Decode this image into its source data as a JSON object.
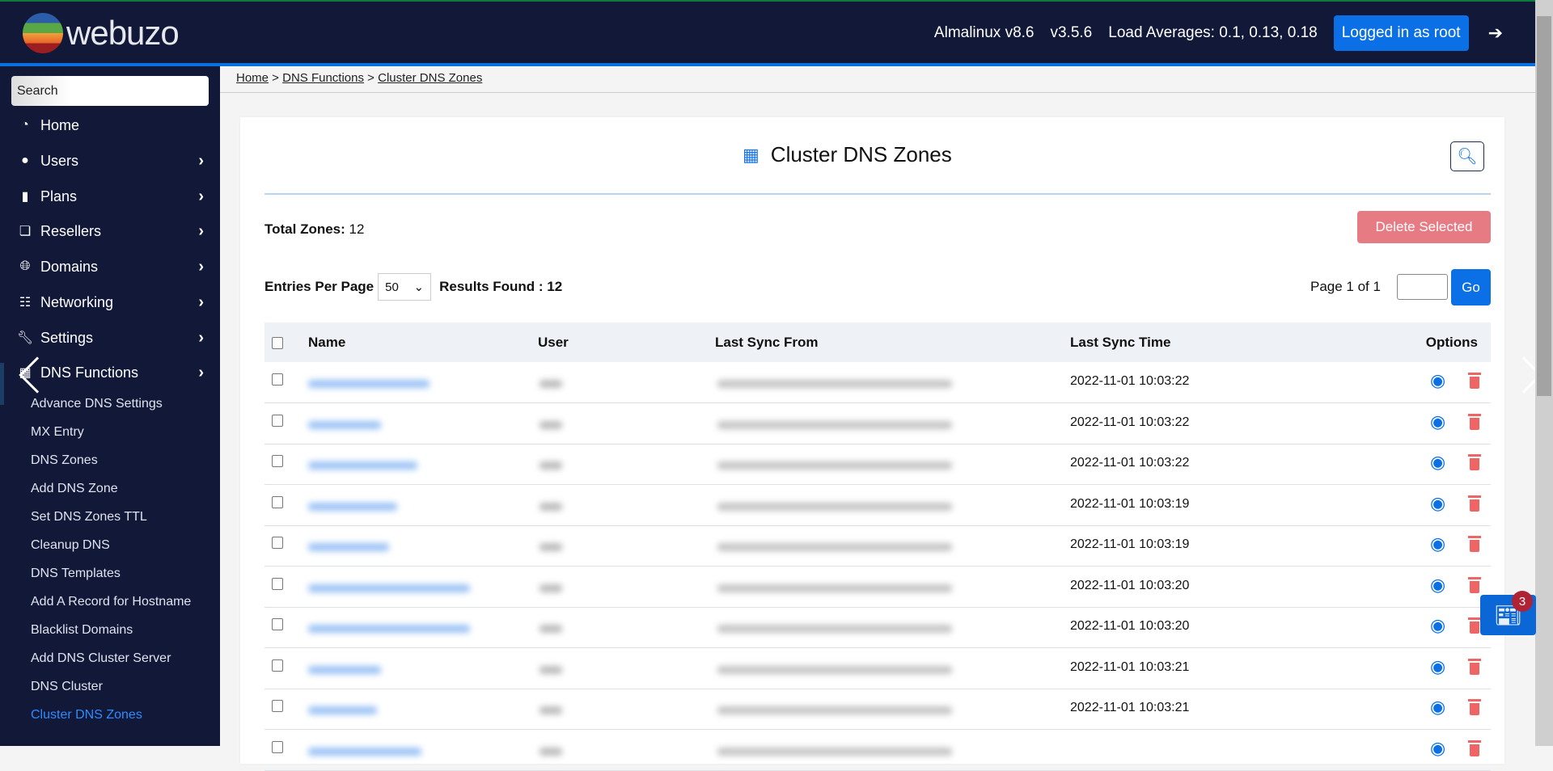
{
  "header": {
    "brand": "webuzo",
    "os": "Almalinux v8.6",
    "version": "v3.5.6",
    "load": "Load Averages: 0.1, 0.13, 0.18",
    "login": "Logged in as root",
    "logout_icon": "sign-out-icon"
  },
  "sidebar": {
    "search_placeholder": "Search",
    "items": [
      {
        "label": "Home",
        "icon": "dashboard-icon",
        "chev": false
      },
      {
        "label": "Users",
        "icon": "user-icon",
        "chev": true
      },
      {
        "label": "Plans",
        "icon": "book-icon",
        "chev": true
      },
      {
        "label": "Resellers",
        "icon": "clone-icon",
        "chev": true
      },
      {
        "label": "Domains",
        "icon": "globe-icon",
        "chev": true
      },
      {
        "label": "Networking",
        "icon": "network-icon",
        "chev": true
      },
      {
        "label": "Settings",
        "icon": "wrench-icon",
        "chev": true
      },
      {
        "label": "DNS Functions",
        "icon": "sitemap-icon",
        "chev": true
      }
    ],
    "subitems": [
      "Advance DNS Settings",
      "MX Entry",
      "DNS Zones",
      "Add DNS Zone",
      "Set DNS Zones TTL",
      "Cleanup DNS",
      "DNS Templates",
      "Add A Record for Hostname",
      "Blacklist Domains",
      "Add DNS Cluster Server",
      "DNS Cluster",
      "Cluster DNS Zones"
    ],
    "active": "Cluster DNS Zones"
  },
  "breadcrumb": [
    "Home",
    "DNS Functions",
    "Cluster DNS Zones"
  ],
  "page": {
    "title": "Cluster DNS Zones",
    "total_label": "Total Zones:",
    "total": "12",
    "delete_selected": "Delete Selected",
    "entries_label": "Entries Per Page",
    "entries_value": "50",
    "results": "Results Found : 12",
    "page_info": "Page 1 of 1",
    "go": "Go"
  },
  "table": {
    "columns": [
      "Name",
      "User",
      "Last Sync From",
      "Last Sync Time",
      "Options"
    ],
    "rows": [
      {
        "time": "2022-11-01 10:03:22"
      },
      {
        "time": "2022-11-01 10:03:22"
      },
      {
        "time": "2022-11-01 10:03:22"
      },
      {
        "time": "2022-11-01 10:03:19"
      },
      {
        "time": "2022-11-01 10:03:19"
      },
      {
        "time": "2022-11-01 10:03:20"
      },
      {
        "time": "2022-11-01 10:03:20"
      },
      {
        "time": "2022-11-01 10:03:21"
      },
      {
        "time": "2022-11-01 10:03:21"
      },
      {
        "time": ""
      }
    ]
  },
  "notifications": {
    "count": "3",
    "icon": "newspaper-icon"
  },
  "colors": {
    "header_bg": "#111838",
    "accent": "#0b70e6",
    "danger": "#ef6464",
    "active_link": "#2f8cff"
  }
}
